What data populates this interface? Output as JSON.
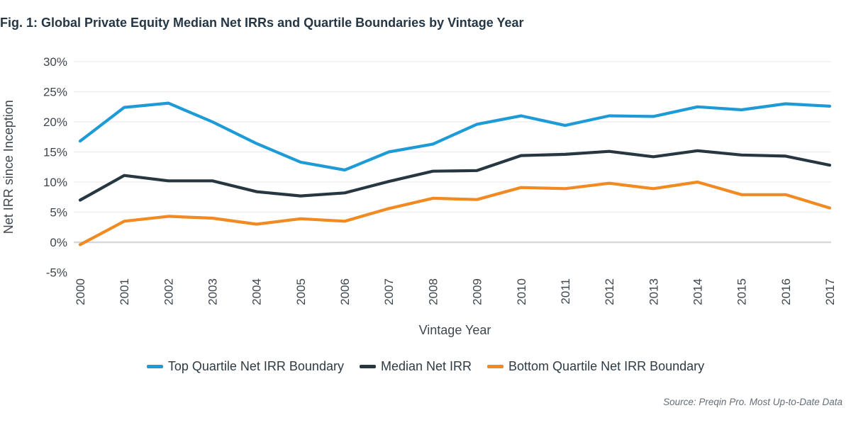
{
  "title": "Fig. 1: Global Private Equity Median Net IRRs and Quartile Boundaries by Vintage Year",
  "source_note": "Source: Preqin Pro. Most Up-to-Date Data",
  "colors": {
    "top_quartile": "#1E9BD7",
    "median": "#263741",
    "bottom_quartile": "#F08A21",
    "title_text": "#253744",
    "axis_text": "#3F474E",
    "gridline": "#EFEFEF",
    "zero_line": "#D8D8D8",
    "source_text": "#666D73"
  },
  "chart_data": {
    "type": "line",
    "title": "Fig. 1: Global Private Equity Median Net IRRs and Quartile Boundaries by Vintage Year",
    "xlabel": "Vintage Year",
    "ylabel": "Net IRR since Inception",
    "x": [
      "2000",
      "2001",
      "2002",
      "2003",
      "2004",
      "2005",
      "2006",
      "2007",
      "2008",
      "2009",
      "2010",
      "2011",
      "2012",
      "2013",
      "2014",
      "2015",
      "2016",
      "2017"
    ],
    "series": [
      {
        "name": "Top Quartile Net IRR Boundary",
        "color": "#1E9BD7",
        "values": [
          16.8,
          22.4,
          23.1,
          20.0,
          16.4,
          13.3,
          12.0,
          15.0,
          16.3,
          19.6,
          21.0,
          19.4,
          21.0,
          20.9,
          22.5,
          22.0,
          23.0,
          22.6
        ]
      },
      {
        "name": "Median Net IRR",
        "color": "#263741",
        "values": [
          7.0,
          11.1,
          10.2,
          10.2,
          8.4,
          7.7,
          8.2,
          10.1,
          11.8,
          11.9,
          14.4,
          14.6,
          15.1,
          14.2,
          15.2,
          14.5,
          14.3,
          12.8
        ]
      },
      {
        "name": "Bottom Quartile Net IRR Boundary",
        "color": "#F08A21",
        "values": [
          -0.4,
          3.5,
          4.3,
          4.0,
          3.0,
          3.9,
          3.5,
          5.6,
          7.3,
          7.1,
          9.1,
          8.9,
          9.8,
          8.9,
          10.0,
          7.9,
          7.9,
          5.7
        ]
      }
    ],
    "ylim": [
      -5,
      30
    ],
    "ytick_step": 5,
    "ytick_labels": [
      "-5%",
      "0%",
      "5%",
      "10%",
      "15%",
      "20%",
      "25%",
      "30%"
    ],
    "ytick_format": "percent",
    "grid": true,
    "legend_position": "bottom"
  }
}
